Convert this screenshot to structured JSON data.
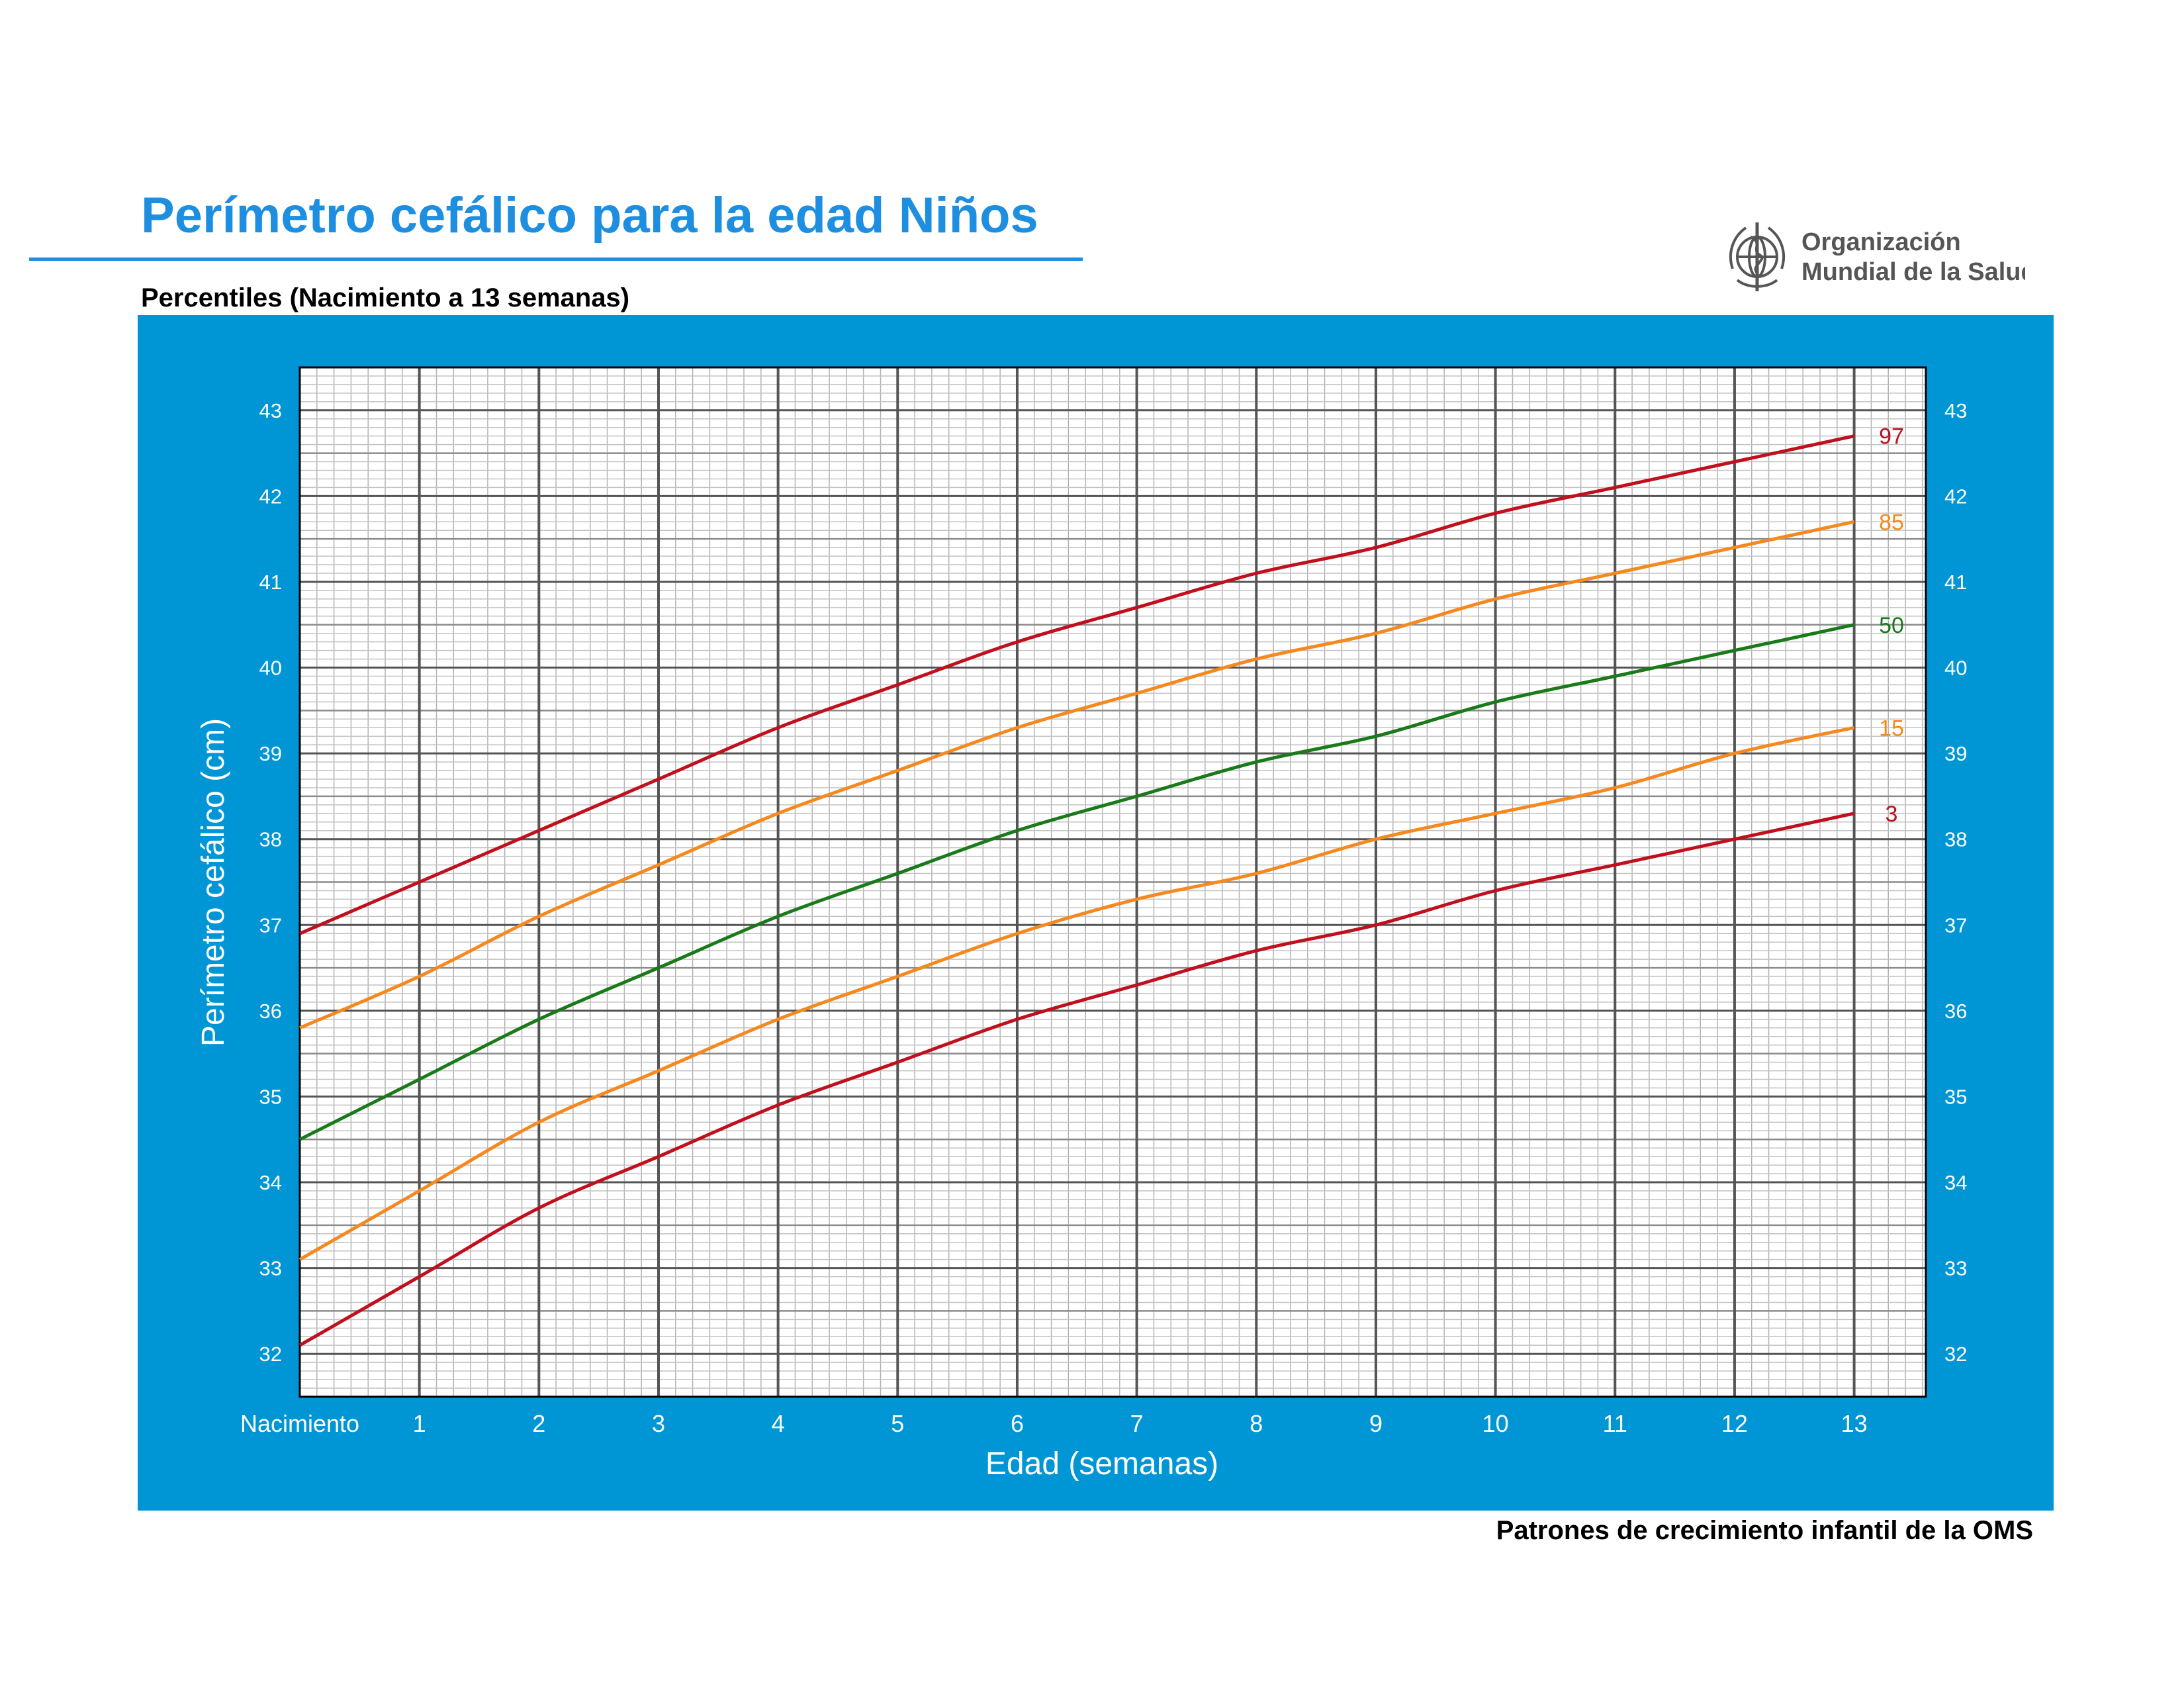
{
  "header": {
    "title": "Perímetro cefálico para la edad  Niños",
    "subtitle": "Percentiles (Nacimiento a 13 semanas)",
    "logo_line1": "Organización",
    "logo_line2": "Mundial de la Salud"
  },
  "footer": {
    "text": "Patrones de crecimiento infantil de la OMS"
  },
  "colors": {
    "accent": "#1e8fe0",
    "panel": "#0096d6",
    "grid_bg": "#ffffff",
    "p3_97": "#c0101e",
    "p15_85": "#f5891f",
    "p50": "#1a7a1a"
  },
  "chart_data": {
    "type": "line",
    "xlabel": "Edad (semanas)",
    "ylabel": "Perímetro cefálico (cm)",
    "xlim": [
      0,
      13.6
    ],
    "ylim": [
      31.5,
      43.5
    ],
    "x_ticks": [
      {
        "value": 0,
        "label": "Nacimiento"
      },
      {
        "value": 1,
        "label": "1"
      },
      {
        "value": 2,
        "label": "2"
      },
      {
        "value": 3,
        "label": "3"
      },
      {
        "value": 4,
        "label": "4"
      },
      {
        "value": 5,
        "label": "5"
      },
      {
        "value": 6,
        "label": "6"
      },
      {
        "value": 7,
        "label": "7"
      },
      {
        "value": 8,
        "label": "8"
      },
      {
        "value": 9,
        "label": "9"
      },
      {
        "value": 10,
        "label": "10"
      },
      {
        "value": 11,
        "label": "11"
      },
      {
        "value": 12,
        "label": "12"
      },
      {
        "value": 13,
        "label": "13"
      }
    ],
    "y_ticks": [
      "32",
      "33",
      "34",
      "35",
      "36",
      "37",
      "38",
      "39",
      "40",
      "41",
      "42",
      "43"
    ],
    "grid": true,
    "x": [
      0,
      1,
      2,
      3,
      4,
      5,
      6,
      7,
      8,
      9,
      10,
      11,
      12,
      13
    ],
    "series": [
      {
        "name": "97",
        "color": "#c0101e",
        "values": [
          36.9,
          37.5,
          38.1,
          38.7,
          39.3,
          39.8,
          40.3,
          40.7,
          41.1,
          41.4,
          41.8,
          42.1,
          42.4,
          42.7
        ]
      },
      {
        "name": "85",
        "color": "#f5891f",
        "values": [
          35.8,
          36.4,
          37.1,
          37.7,
          38.3,
          38.8,
          39.3,
          39.7,
          40.1,
          40.4,
          40.8,
          41.1,
          41.4,
          41.7
        ]
      },
      {
        "name": "50",
        "color": "#1a7a1a",
        "values": [
          34.5,
          35.2,
          35.9,
          36.5,
          37.1,
          37.6,
          38.1,
          38.5,
          38.9,
          39.2,
          39.6,
          39.9,
          40.2,
          40.5
        ]
      },
      {
        "name": "15",
        "color": "#f5891f",
        "values": [
          33.1,
          33.9,
          34.7,
          35.3,
          35.9,
          36.4,
          36.9,
          37.3,
          37.6,
          38.0,
          38.3,
          38.6,
          39.0,
          39.3
        ]
      },
      {
        "name": "3",
        "color": "#c0101e",
        "values": [
          32.1,
          32.9,
          33.7,
          34.3,
          34.9,
          35.4,
          35.9,
          36.3,
          36.7,
          37.0,
          37.4,
          37.7,
          38.0,
          38.3
        ]
      }
    ]
  }
}
